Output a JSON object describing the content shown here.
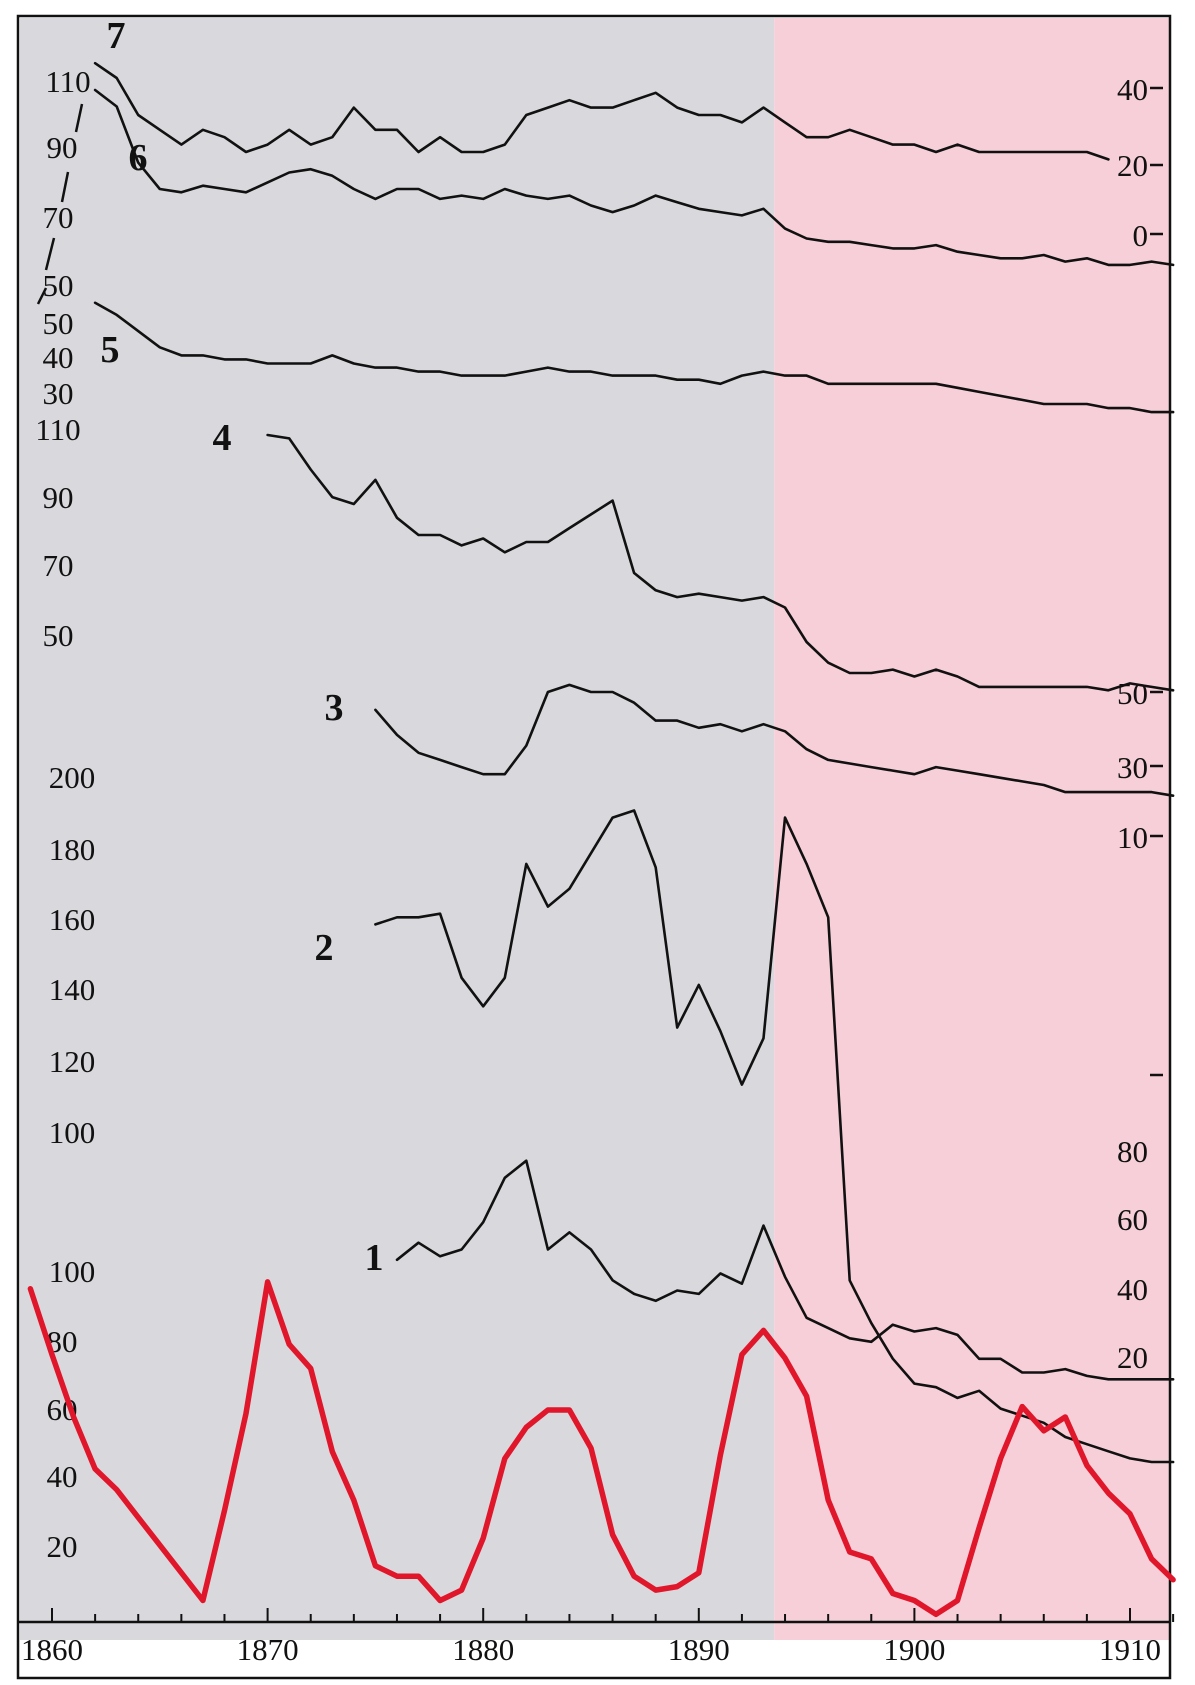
{
  "chart_data": {
    "type": "line",
    "x_axis": {
      "ticks": [
        1860,
        1870,
        1880,
        1890,
        1900,
        1910
      ],
      "range": [
        1859,
        1913
      ]
    },
    "background": {
      "left_color": "#d9d8dc",
      "right_color": "#f7cfd8",
      "split_year": 1893.5
    },
    "left_scale_labels": [
      {
        "text": "110",
        "anchor_y": 1
      },
      {
        "text": "90",
        "anchor_y": 1
      },
      {
        "text": "70",
        "anchor_y": 1
      },
      {
        "text": "50",
        "anchor_y": 1
      },
      {
        "text": "50",
        "anchor_y": 2
      },
      {
        "text": "40",
        "anchor_y": 2
      },
      {
        "text": "30",
        "anchor_y": 2
      },
      {
        "text": "110",
        "anchor_y": 3
      },
      {
        "text": "90",
        "anchor_y": 3
      },
      {
        "text": "70",
        "anchor_y": 3
      },
      {
        "text": "50",
        "anchor_y": 3
      },
      {
        "text": "200",
        "anchor_y": 4
      },
      {
        "text": "180",
        "anchor_y": 4
      },
      {
        "text": "160",
        "anchor_y": 4
      },
      {
        "text": "140",
        "anchor_y": 4
      },
      {
        "text": "120",
        "anchor_y": 4
      },
      {
        "text": "100",
        "anchor_y": 4
      },
      {
        "text": "100",
        "anchor_y": 5
      },
      {
        "text": "80",
        "anchor_y": 5
      },
      {
        "text": "60",
        "anchor_y": 5
      },
      {
        "text": "40",
        "anchor_y": 5
      },
      {
        "text": "20",
        "anchor_y": 5
      }
    ],
    "right_scale_labels": [
      "40",
      "20",
      "0",
      "50",
      "30",
      "10",
      "80",
      "60",
      "40",
      "20"
    ],
    "series": [
      {
        "name": "7",
        "color": "#111111",
        "x": [
          1862,
          1863,
          1864,
          1865,
          1866,
          1867,
          1868,
          1869,
          1870,
          1871,
          1872,
          1873,
          1874,
          1875,
          1876,
          1877,
          1878,
          1879,
          1880,
          1881,
          1882,
          1883,
          1884,
          1885,
          1886,
          1887,
          1888,
          1889,
          1890,
          1891,
          1892,
          1893,
          1894,
          1895,
          1896,
          1897,
          1898,
          1899,
          1900,
          1901,
          1902,
          1903,
          1904,
          1905,
          1906,
          1907,
          1908,
          1909
        ],
        "y": [
          47,
          45,
          40,
          38,
          36,
          38,
          37,
          35,
          36,
          38,
          36,
          37,
          41,
          38,
          38,
          35,
          37,
          35,
          35,
          36,
          40,
          41,
          42,
          41,
          41,
          42,
          43,
          41,
          40,
          40,
          39,
          41,
          39,
          37,
          37,
          38,
          37,
          36,
          36,
          35,
          36,
          35,
          35,
          35,
          35,
          35,
          35,
          34
        ]
      },
      {
        "name": "6",
        "color": "#111111",
        "x": [
          1862,
          1863,
          1864,
          1865,
          1866,
          1867,
          1868,
          1869,
          1870,
          1871,
          1872,
          1873,
          1874,
          1875,
          1876,
          1877,
          1878,
          1879,
          1880,
          1881,
          1882,
          1883,
          1884,
          1885,
          1886,
          1887,
          1888,
          1889,
          1890,
          1891,
          1892,
          1893,
          1894,
          1895,
          1896,
          1897,
          1898,
          1899,
          1900,
          1901,
          1902,
          1903,
          1904,
          1905,
          1906,
          1907,
          1908,
          1909,
          1910,
          1911,
          1912
        ],
        "y": [
          110,
          105,
          88,
          80,
          79,
          81,
          80,
          79,
          82,
          85,
          86,
          84,
          80,
          77,
          80,
          80,
          77,
          78,
          77,
          80,
          78,
          77,
          78,
          75,
          73,
          75,
          78,
          76,
          74,
          73,
          72,
          74,
          68,
          65,
          64,
          64,
          63,
          62,
          62,
          63,
          61,
          60,
          59,
          59,
          60,
          58,
          59,
          57,
          57,
          58,
          57
        ]
      },
      {
        "name": "5",
        "color": "#111111",
        "x": [
          1862,
          1863,
          1864,
          1865,
          1866,
          1867,
          1868,
          1869,
          1870,
          1871,
          1872,
          1873,
          1874,
          1875,
          1876,
          1877,
          1878,
          1879,
          1880,
          1881,
          1882,
          1883,
          1884,
          1885,
          1886,
          1887,
          1888,
          1889,
          1890,
          1891,
          1892,
          1893,
          1894,
          1895,
          1896,
          1897,
          1898,
          1899,
          1900,
          1901,
          1902,
          1903,
          1904,
          1905,
          1906,
          1907,
          1908,
          1909,
          1910,
          1911,
          1912
        ],
        "y": [
          55,
          52,
          48,
          44,
          42,
          42,
          41,
          41,
          40,
          40,
          40,
          42,
          40,
          39,
          39,
          38,
          38,
          37,
          37,
          37,
          38,
          39,
          38,
          38,
          37,
          37,
          37,
          36,
          36,
          35,
          37,
          38,
          37,
          37,
          35,
          35,
          35,
          35,
          35,
          35,
          34,
          33,
          32,
          31,
          30,
          30,
          30,
          29,
          29,
          28,
          28
        ]
      },
      {
        "name": "4",
        "color": "#111111",
        "x": [
          1870,
          1871,
          1872,
          1873,
          1874,
          1875,
          1876,
          1877,
          1878,
          1879,
          1880,
          1881,
          1882,
          1883,
          1884,
          1885,
          1886,
          1887,
          1888,
          1889,
          1890,
          1891,
          1892,
          1893,
          1894,
          1895,
          1896,
          1897,
          1898,
          1899,
          1900,
          1901,
          1902,
          1903,
          1904,
          1905,
          1906,
          1907,
          1908,
          1909,
          1910,
          1911,
          1912
        ],
        "y": [
          110,
          109,
          100,
          92,
          90,
          97,
          86,
          81,
          81,
          78,
          80,
          76,
          79,
          79,
          83,
          87,
          91,
          70,
          65,
          63,
          64,
          63,
          62,
          63,
          60,
          50,
          44,
          41,
          41,
          42,
          40,
          42,
          40,
          37,
          37,
          37,
          37,
          37,
          37,
          36,
          38,
          37,
          36
        ]
      },
      {
        "name": "3",
        "color": "#111111",
        "x": [
          1875,
          1876,
          1877,
          1878,
          1879,
          1880,
          1881,
          1882,
          1883,
          1884,
          1885,
          1886,
          1887,
          1888,
          1889,
          1890,
          1891,
          1892,
          1893,
          1894,
          1895,
          1896,
          1897,
          1898,
          1899,
          1900,
          1901,
          1902,
          1903,
          1904,
          1905,
          1906,
          1907,
          1908,
          1909,
          1910,
          1911,
          1912
        ],
        "y": [
          45,
          38,
          33,
          31,
          29,
          27,
          27,
          35,
          50,
          52,
          50,
          50,
          47,
          42,
          42,
          40,
          41,
          39,
          41,
          39,
          34,
          31,
          30,
          29,
          28,
          27,
          29,
          28,
          27,
          26,
          25,
          24,
          22,
          22,
          22,
          22,
          22,
          21
        ]
      },
      {
        "name": "2",
        "color": "#111111",
        "x": [
          1875,
          1876,
          1877,
          1878,
          1879,
          1880,
          1881,
          1882,
          1883,
          1884,
          1885,
          1886,
          1887,
          1888,
          1889,
          1890,
          1891,
          1892,
          1893,
          1894,
          1895,
          1896,
          1897,
          1898,
          1899,
          1900,
          1901,
          1902,
          1903,
          1904,
          1905,
          1906,
          1907,
          1908,
          1909,
          1910,
          1911,
          1912
        ],
        "y": [
          160,
          162,
          162,
          163,
          145,
          137,
          145,
          177,
          165,
          170,
          180,
          190,
          192,
          176,
          131,
          143,
          130,
          115,
          128,
          190,
          177,
          162,
          60,
          48,
          38,
          31,
          30,
          27,
          29,
          24,
          22,
          20,
          16,
          14,
          12,
          10,
          9,
          9
        ]
      },
      {
        "name": "1",
        "color": "#111111",
        "x": [
          1876,
          1877,
          1878,
          1879,
          1880,
          1881,
          1882,
          1883,
          1884,
          1885,
          1886,
          1887,
          1888,
          1889,
          1890,
          1891,
          1892,
          1893,
          1894,
          1895,
          1896,
          1897,
          1898,
          1899,
          1900,
          1901,
          1902,
          1903,
          1904,
          1905,
          1906,
          1907,
          1908,
          1909,
          1910,
          1911,
          1912
        ],
        "y": [
          47,
          52,
          48,
          50,
          58,
          71,
          76,
          50,
          55,
          50,
          41,
          37,
          35,
          38,
          37,
          43,
          40,
          57,
          42,
          30,
          27,
          24,
          23,
          28,
          26,
          27,
          25,
          18,
          18,
          14,
          14,
          15,
          13,
          12,
          12,
          12,
          12
        ]
      },
      {
        "name": "",
        "color": "#e0162b",
        "x": [
          1859,
          1860,
          1861,
          1862,
          1863,
          1864,
          1865,
          1866,
          1867,
          1868,
          1869,
          1870,
          1871,
          1872,
          1873,
          1874,
          1875,
          1876,
          1877,
          1878,
          1879,
          1880,
          1881,
          1882,
          1883,
          1884,
          1885,
          1886,
          1887,
          1888,
          1889,
          1890,
          1891,
          1892,
          1893,
          1894,
          1895,
          1896,
          1897,
          1898,
          1899,
          1900,
          1901,
          1902,
          1903,
          1904,
          1905,
          1906,
          1907,
          1908,
          1909,
          1910,
          1911,
          1912
        ],
        "y": [
          96,
          77,
          59,
          44,
          38,
          30,
          22,
          14,
          6,
          32,
          60,
          98,
          80,
          73,
          49,
          35,
          16,
          13,
          13,
          6,
          9,
          24,
          47,
          56,
          61,
          61,
          50,
          25,
          13,
          9,
          10,
          14,
          48,
          77,
          84,
          76,
          65,
          35,
          20,
          18,
          8,
          6,
          2,
          6,
          27,
          47,
          62,
          55,
          59,
          45,
          37,
          31,
          18,
          12
        ]
      }
    ]
  }
}
